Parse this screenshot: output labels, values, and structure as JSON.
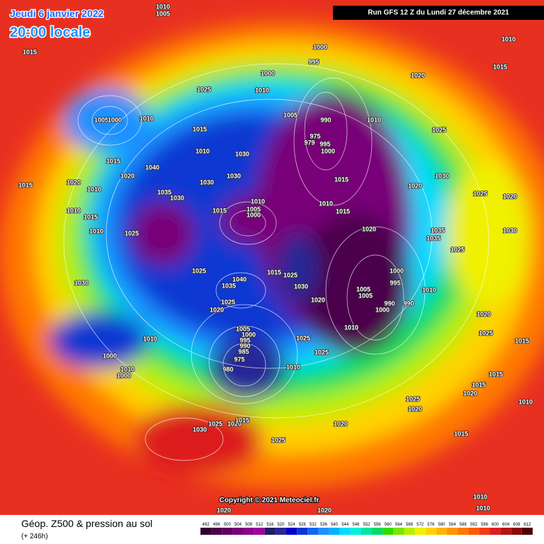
{
  "header": {
    "date": "Jeudi 6 janvier 2022",
    "time": "20:00 locale",
    "run": "Run GFS 12 Z du Lundi 27 décembre 2021"
  },
  "footer": {
    "title": "Géop. Z500 & pression au sol",
    "lead": "(+ 246h)",
    "copyright": "Copyright © 2021 Meteociel.fr"
  },
  "scale": {
    "labels": [
      492,
      496,
      500,
      504,
      508,
      512,
      516,
      520,
      524,
      528,
      532,
      536,
      540,
      544,
      548,
      552,
      556,
      560,
      564,
      568,
      572,
      576,
      580,
      584,
      588,
      592,
      596,
      600,
      604,
      608,
      612
    ],
    "colors": [
      "#300030",
      "#4b004b",
      "#600060",
      "#780078",
      "#8c008c",
      "#a000a0",
      "#1e1e64",
      "#282896",
      "#0000c8",
      "#0a37d2",
      "#1464f0",
      "#1e90ff",
      "#00b4ff",
      "#00dcff",
      "#00f0dc",
      "#00e6a0",
      "#00dc64",
      "#32dc00",
      "#78e600",
      "#b4f000",
      "#f0f000",
      "#ffd200",
      "#ffb400",
      "#ff9600",
      "#ff7800",
      "#ff5a00",
      "#f03c14",
      "#dc1e1e",
      "#b41414",
      "#8c0a0a",
      "#500000"
    ]
  },
  "isobar_labels": [
    1010,
    1005,
    1015,
    1000,
    995,
    1000,
    1025,
    1010,
    1020,
    1010,
    1015,
    1005,
    1000,
    1010,
    1015,
    1005,
    990,
    1010,
    1025,
    975,
    979,
    995,
    1000,
    1010,
    1030,
    1015,
    1020,
    1040,
    1030,
    1030,
    1015,
    1030,
    1020,
    1015,
    1020,
    1010,
    1035,
    1030,
    1025,
    1020,
    1010,
    1005,
    1000,
    1015,
    1010,
    1015,
    1010,
    1015,
    1010,
    1025,
    1020,
    1035,
    1035,
    1030,
    1025,
    1025,
    1015,
    1025,
    1000,
    1040,
    1035,
    1030,
    995,
    1010,
    1005,
    1005,
    1030,
    1025,
    1020,
    990,
    990,
    1000,
    1020,
    1020,
    1005,
    1000,
    995,
    990,
    985,
    1025,
    1010,
    1025,
    1015,
    1010,
    1025,
    975,
    1000,
    1010,
    980,
    1010,
    1000,
    1015,
    1020,
    1015,
    1025,
    1020,
    1030,
    1025,
    1020,
    1015,
    1020,
    1015,
    1025,
    1010,
    1010,
    1020,
    1020,
    1010
  ]
}
